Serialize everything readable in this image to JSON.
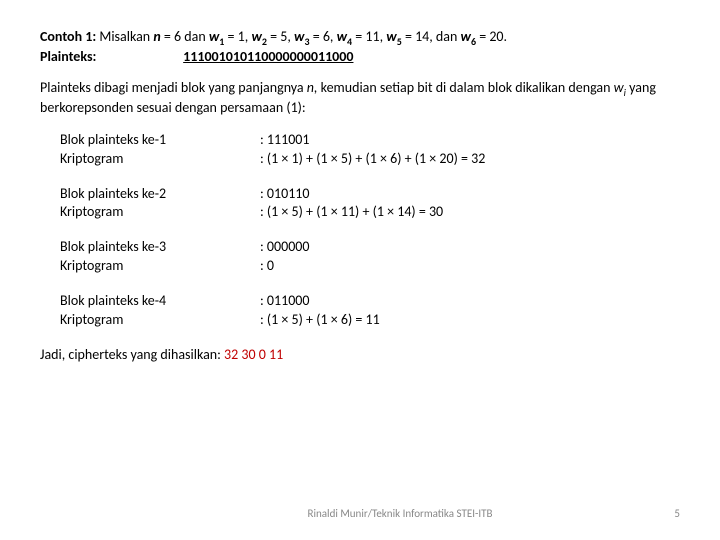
{
  "header": {
    "prefix": "Contoh 1:",
    "pretext": "Misalkan ",
    "n_label": "n",
    "n_text": " = 6 dan ",
    "w1a": "w",
    "w1s": "1",
    "w1v": " = 1, ",
    "w2a": "w",
    "w2s": "2",
    "w2v": " = 5, ",
    "w3a": "w",
    "w3s": "3",
    "w3v": " = 6,  ",
    "w4a": "w",
    "w4s": "4",
    "w4v": " = 11, ",
    "w5a": "w",
    "w5s": "5",
    "w5v": " = 14, dan ",
    "w6a": "w",
    "w6s": "6",
    "w6v": " = 20."
  },
  "plainteks": {
    "label": "Plainteks:",
    "bits": "111001010110000000011000"
  },
  "intro": {
    "line1a": "Plainteks dibagi menjadi blok yang panjangnya ",
    "n": "n,",
    "line1b": " kemudian setiap bit di dalam blok dikalikan dengan ",
    "w": "w",
    "isub": "i",
    "line2": " yang berkorepsonden sesuai dengan persamaan (1):"
  },
  "blocks": [
    {
      "l1": "Blok plainteks ke-1",
      "r1": ": 111001",
      "l2": "Kriptogram",
      "r2": ": (1 × 1) + (1 × 5) + (1 × 6) + (1 × 20)   = 32"
    },
    {
      "l1": "Blok plainteks ke-2",
      "r1": ": 010110",
      "l2": "Kriptogram",
      "r2": ": (1 × 5) + (1 × 11) + (1 × 14) = 30"
    },
    {
      "l1": "Blok plainteks ke-3",
      "r1": ": 000000",
      "l2": "Kriptogram",
      "r2": ": 0"
    },
    {
      "l1": "Blok plainteks ke-4",
      "r1": ": 011000",
      "l2": "Kriptogram",
      "r2": ": (1 × 5) + (1 × 6) = 11"
    }
  ],
  "conclusion": {
    "label": "Jadi, cipherteks yang dihasilkan:  ",
    "value": "32  30  0  11"
  },
  "footer": {
    "credit": "Rinaldi Munir/Teknik Informatika STEI-ITB",
    "page": "5"
  }
}
